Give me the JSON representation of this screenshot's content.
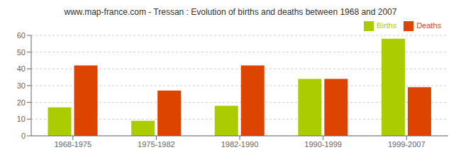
{
  "chart_data": {
    "type": "bar",
    "title": "www.map-france.com - Tressan : Evolution of births and deaths between 1968 and 2007",
    "categories": [
      "1968-1975",
      "1975-1982",
      "1982-1990",
      "1990-1999",
      "1999-2007"
    ],
    "series": [
      {
        "name": "Births",
        "color": "#aacc00",
        "values": [
          17,
          9,
          18,
          34,
          58
        ]
      },
      {
        "name": "Deaths",
        "color": "#dd4400",
        "values": [
          42,
          27,
          42,
          34,
          29
        ]
      }
    ],
    "ylim": [
      0,
      60
    ],
    "yticks": [
      0,
      10,
      20,
      30,
      40,
      50,
      60
    ],
    "grid": true,
    "legend": "upper right"
  }
}
